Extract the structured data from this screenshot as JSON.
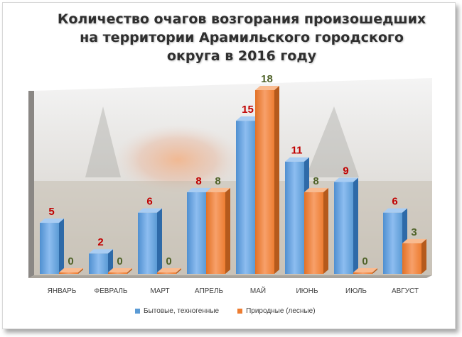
{
  "title_lines": [
    "Количество очагов возгорания произошедших",
    "на территории  Арамильского городского",
    "округа в 2016 году"
  ],
  "colors": {
    "series1": "#5b9bd5",
    "series1_dark": "#2e6aa8",
    "series2": "#ed7d31",
    "series2_dark": "#b55a1c",
    "label1": "#c00000",
    "label2": "#4f6228"
  },
  "chart_data": {
    "type": "bar",
    "title": "Количество очагов возгорания произошедших на территории  Арамильского городского округа в 2016 году",
    "categories": [
      "ЯНВАРЬ",
      "ФЕВРАЛЬ",
      "МАРТ",
      "АПРЕЛЬ",
      "МАЙ",
      "ИЮНЬ",
      "ИЮЛЬ",
      "АВГУСТ"
    ],
    "series": [
      {
        "name": "Бытовые, техногенные",
        "values": [
          5,
          2,
          6,
          8,
          15,
          11,
          9,
          6
        ]
      },
      {
        "name": "Природные (лесные)",
        "values": [
          0,
          0,
          0,
          8,
          18,
          8,
          0,
          3
        ]
      }
    ],
    "ylim": [
      0,
      18
    ],
    "grid": false,
    "legend_position": "bottom",
    "three_d": true
  }
}
